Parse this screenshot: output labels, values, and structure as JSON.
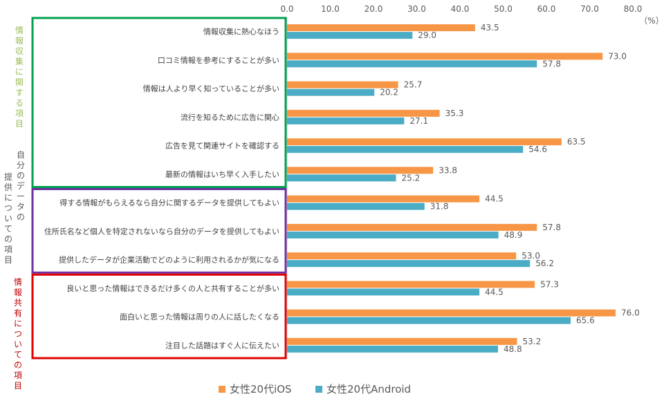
{
  "chart_data": {
    "type": "bar",
    "orientation": "horizontal",
    "unit": "（%）",
    "xlim": [
      0,
      80
    ],
    "x_ticks": [
      "0.0",
      "10.0",
      "20.0",
      "30.0",
      "40.0",
      "50.0",
      "60.0",
      "70.0",
      "80.0"
    ],
    "grid": false,
    "legend_position": "bottom",
    "categories": [
      "情報収集に熱心なほう",
      "口コミ情報を参考にすることが多い",
      "情報は人より早く知っていることが多い",
      "流行を知るために広告に関心",
      "広告を見て関連サイトを確認する",
      "最新の情報はいち早く入手したい",
      "得する情報がもらえるなら自分に関するデータを提供してもよい",
      "住所氏名など個人を特定されないなら自分のデータを提供してもよい",
      "提供したデータが企業活動でどのように利用されるかが気になる",
      "良いと思った情報はできるだけ多くの人と共有することが多い",
      "面白いと思った情報は周りの人に話したくなる",
      "注目した話題はすぐ人に伝えたい"
    ],
    "series": [
      {
        "name": "女性20代iOS",
        "color": "#F79646",
        "values": [
          43.5,
          73.0,
          25.7,
          35.3,
          63.5,
          33.8,
          44.5,
          57.8,
          53.0,
          57.3,
          76.0,
          53.2
        ],
        "labels": [
          "43.5",
          "73.0",
          "25.7",
          "35.3",
          "63.5",
          "33.8",
          "44.5",
          "57.8",
          "53.0",
          "57.3",
          "76.0",
          "53.2"
        ]
      },
      {
        "name": "女性20代Android",
        "color": "#4BACC6",
        "values": [
          29.0,
          57.8,
          20.2,
          27.1,
          54.6,
          25.2,
          31.8,
          48.9,
          56.2,
          44.5,
          65.6,
          48.8
        ],
        "labels": [
          "29.0",
          "57.8",
          "20.2",
          "27.1",
          "54.6",
          "25.2",
          "31.8",
          "48.9",
          "56.2",
          "44.5",
          "65.6",
          "48.8"
        ]
      }
    ],
    "groups": [
      {
        "label": "情報収集に関する項目",
        "color": "#9BBB59",
        "box_color": "#00A050",
        "start": 0,
        "end": 5
      },
      {
        "label": "自分のデータの提供についての項目",
        "color": "#595959",
        "box_color": "#7030A0",
        "start": 6,
        "end": 8
      },
      {
        "label": "情報共有についての項目",
        "color": "#C00000",
        "box_color": "#E00000",
        "start": 9,
        "end": 11
      }
    ]
  }
}
